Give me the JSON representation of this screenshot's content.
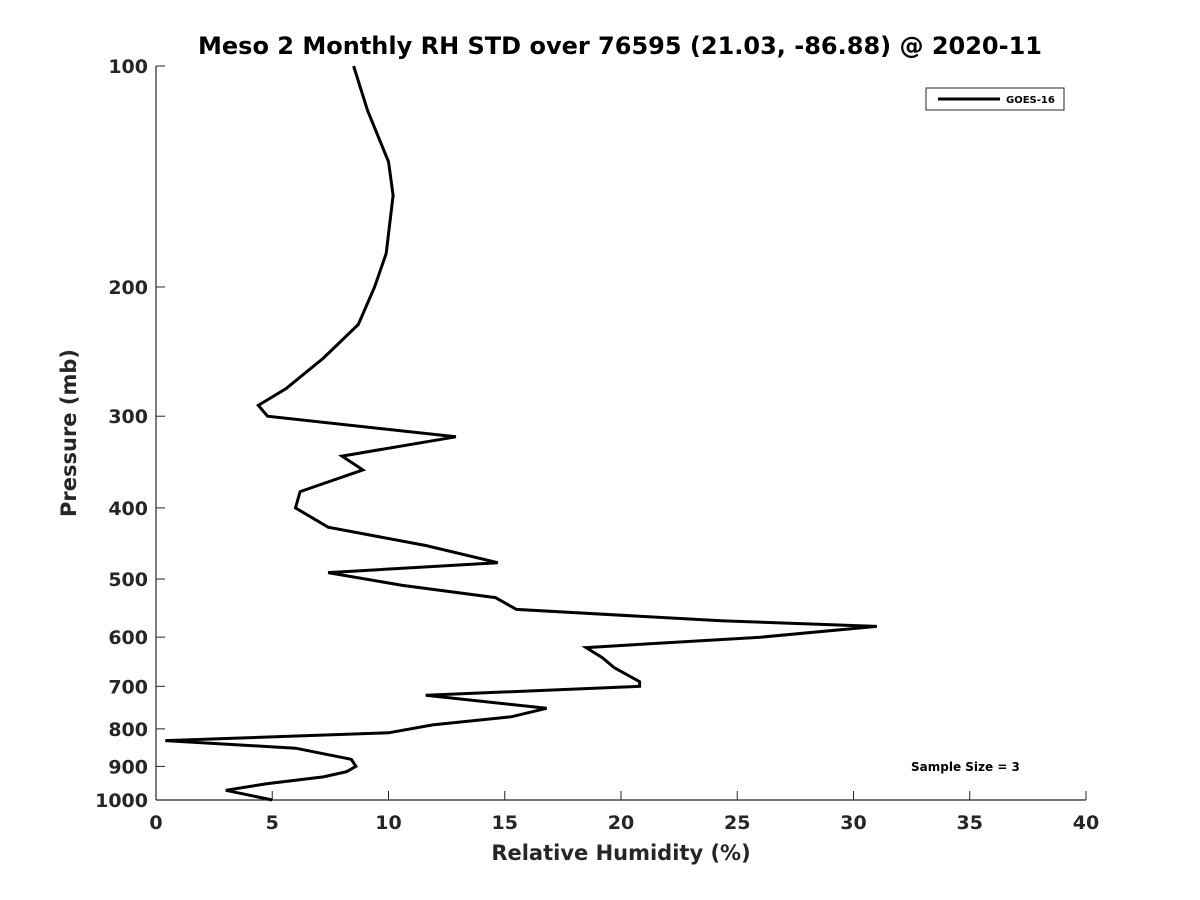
{
  "chart_data": {
    "type": "line",
    "title": "Meso 2 Monthly RH STD over 76595 (21.03, -86.88) @ 2020-11",
    "xlabel": "Relative Humidity (%)",
    "ylabel": "Pressure (mb)",
    "xlim": [
      0,
      40
    ],
    "ylim": [
      100,
      1000
    ],
    "y_scale": "log",
    "y_reversed": true,
    "x_ticks": [
      0,
      5,
      10,
      15,
      20,
      25,
      30,
      35,
      40
    ],
    "x_tick_labels": [
      "0",
      "5",
      "10",
      "15",
      "20",
      "25",
      "30",
      "35",
      "40"
    ],
    "y_ticks": [
      100,
      200,
      300,
      400,
      500,
      600,
      700,
      800,
      900,
      1000
    ],
    "y_tick_labels": [
      "100",
      "200",
      "300",
      "400",
      "500",
      "600",
      "700",
      "800",
      "900",
      "1000"
    ],
    "grid": false,
    "legend_position": "top-right",
    "annotation": "Sample Size = 3",
    "series": [
      {
        "name": "GOES-16",
        "color": "#000000",
        "x": [
          8.5,
          9.1,
          10.0,
          10.2,
          9.9,
          9.4,
          8.7,
          7.2,
          5.6,
          4.4,
          4.8,
          12.9,
          8.0,
          8.9,
          6.2,
          6.0,
          7.4,
          11.6,
          14.7,
          7.4,
          10.6,
          14.6,
          15.5,
          24.3,
          31.0,
          26.0,
          18.5,
          19.2,
          19.7,
          20.8,
          20.8,
          11.6,
          16.8,
          15.3,
          11.9,
          10.0,
          0.4,
          6.0,
          8.4,
          8.6,
          8.2,
          7.2,
          4.8,
          3.0,
          5.0
        ],
        "y": [
          100,
          115,
          135,
          150,
          180,
          200,
          225,
          250,
          275,
          290,
          300,
          320,
          340,
          355,
          380,
          400,
          425,
          450,
          475,
          490,
          510,
          530,
          550,
          570,
          580,
          600,
          620,
          640,
          660,
          690,
          700,
          720,
          750,
          770,
          790,
          810,
          830,
          850,
          880,
          900,
          915,
          930,
          950,
          970,
          1000
        ]
      }
    ]
  }
}
